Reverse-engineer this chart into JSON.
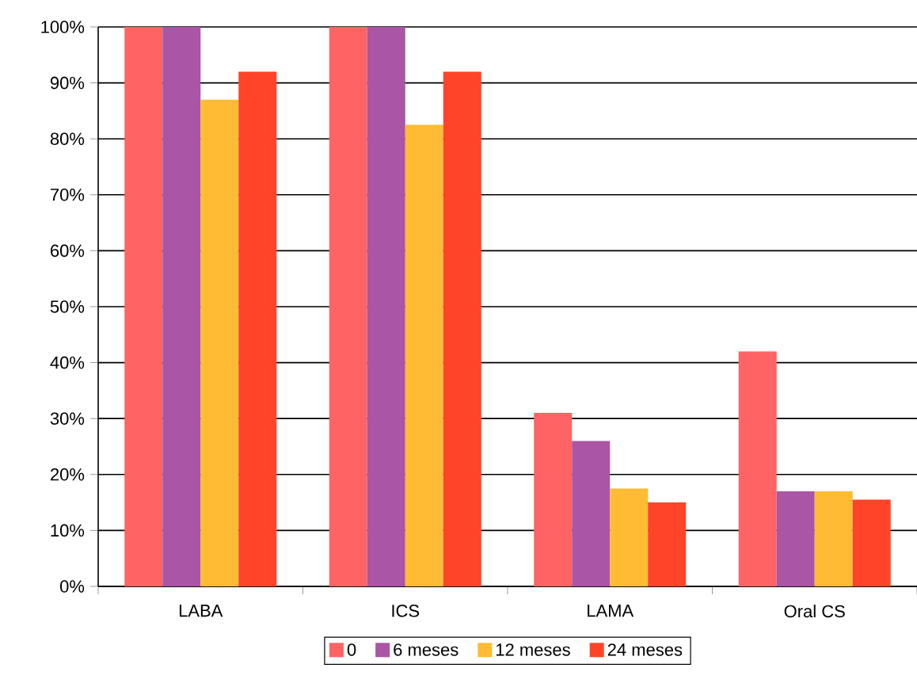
{
  "chart_data": {
    "type": "bar",
    "categories": [
      "LABA",
      "ICS",
      "LAMA",
      "Oral CS"
    ],
    "series": [
      {
        "name": "0",
        "color": "#ff6363",
        "values": [
          100,
          100,
          31,
          42
        ]
      },
      {
        "name": "6 meses",
        "color": "#aa55a5",
        "values": [
          100,
          100,
          26,
          17
        ]
      },
      {
        "name": "12 meses",
        "color": "#ffbb33",
        "values": [
          87,
          82.5,
          17.5,
          17
        ]
      },
      {
        "name": "24 meses",
        "color": "#ff4429",
        "values": [
          92,
          92,
          15,
          15.5
        ]
      }
    ],
    "ylim": [
      0,
      100
    ],
    "yticks": [
      {
        "value": 0,
        "label": "0%"
      },
      {
        "value": 10,
        "label": "10%"
      },
      {
        "value": 20,
        "label": "20%"
      },
      {
        "value": 30,
        "label": "30%"
      },
      {
        "value": 40,
        "label": "40%"
      },
      {
        "value": 50,
        "label": "50%"
      },
      {
        "value": 60,
        "label": "60%"
      },
      {
        "value": 70,
        "label": "70%"
      },
      {
        "value": 80,
        "label": "80%"
      },
      {
        "value": 90,
        "label": "90%"
      },
      {
        "value": 100,
        "label": "100%"
      }
    ],
    "grid": "y",
    "legend": "bottom"
  }
}
